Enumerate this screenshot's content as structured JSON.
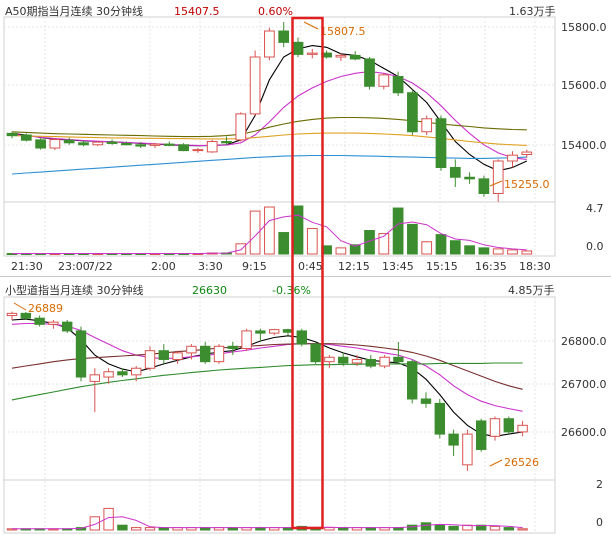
{
  "colors": {
    "up": "#d9534f",
    "down": "#3c8d2f",
    "ma_black": "#000000",
    "ma_magenta": "#cc33cc",
    "ma_olive": "#6b6b00",
    "ma_orange": "#e0a020",
    "ma_blue": "#2f8fd6",
    "ma_green": "#2e8b2e",
    "ma_brown": "#7a2f2f",
    "highlight": "#e02020",
    "grid": "#e6e6e6",
    "text_red": "#c00000",
    "text_green": "#118811",
    "annotation": "#d86a00"
  },
  "x_axis_ticks": [
    "21:30",
    "23:00",
    "7/22",
    "2:00",
    "3:30",
    "9:15",
    "0:45",
    "12:15",
    "13:45",
    "15:15",
    "16:35",
    "18:30"
  ],
  "chart_data": [
    {
      "type": "candlestick",
      "title": "A50期指当月连续 30分钟线",
      "price": "15407.5",
      "change": "0.60%",
      "volume_max_label": "1.63万手",
      "ylim": [
        15260,
        15820
      ],
      "y_ticks": [
        "15800.0",
        "15600.0",
        "15400.0"
      ],
      "volume_ticks": [
        "4.7",
        "0.0"
      ],
      "annotations": {
        "high": "15807.5",
        "low": "15255.0"
      },
      "candles": [
        {
          "o": 15465,
          "h": 15470,
          "l": 15450,
          "c": 15458
        },
        {
          "o": 15460,
          "h": 15465,
          "l": 15440,
          "c": 15444
        },
        {
          "o": 15445,
          "h": 15450,
          "l": 15415,
          "c": 15420
        },
        {
          "o": 15420,
          "h": 15450,
          "l": 15414,
          "c": 15446
        },
        {
          "o": 15444,
          "h": 15452,
          "l": 15430,
          "c": 15436
        },
        {
          "o": 15436,
          "h": 15442,
          "l": 15425,
          "c": 15430
        },
        {
          "o": 15430,
          "h": 15440,
          "l": 15426,
          "c": 15438
        },
        {
          "o": 15438,
          "h": 15446,
          "l": 15430,
          "c": 15434
        },
        {
          "o": 15434,
          "h": 15440,
          "l": 15428,
          "c": 15430
        },
        {
          "o": 15430,
          "h": 15438,
          "l": 15420,
          "c": 15426
        },
        {
          "o": 15428,
          "h": 15436,
          "l": 15420,
          "c": 15432
        },
        {
          "o": 15432,
          "h": 15440,
          "l": 15425,
          "c": 15428
        },
        {
          "o": 15430,
          "h": 15435,
          "l": 15410,
          "c": 15412
        },
        {
          "o": 15412,
          "h": 15420,
          "l": 15405,
          "c": 15415
        },
        {
          "o": 15408,
          "h": 15445,
          "l": 15405,
          "c": 15440
        },
        {
          "o": 15440,
          "h": 15455,
          "l": 15430,
          "c": 15436
        },
        {
          "o": 15445,
          "h": 15530,
          "l": 15440,
          "c": 15525
        },
        {
          "o": 15525,
          "h": 15720,
          "l": 15520,
          "c": 15700
        },
        {
          "o": 15700,
          "h": 15790,
          "l": 15690,
          "c": 15780
        },
        {
          "o": 15780,
          "h": 15807.5,
          "l": 15730,
          "c": 15745
        },
        {
          "o": 15745,
          "h": 15760,
          "l": 15700,
          "c": 15708
        },
        {
          "o": 15708,
          "h": 15725,
          "l": 15696,
          "c": 15712
        },
        {
          "o": 15712,
          "h": 15720,
          "l": 15695,
          "c": 15700
        },
        {
          "o": 15700,
          "h": 15712,
          "l": 15688,
          "c": 15705
        },
        {
          "o": 15705,
          "h": 15718,
          "l": 15690,
          "c": 15694
        },
        {
          "o": 15694,
          "h": 15700,
          "l": 15600,
          "c": 15610
        },
        {
          "o": 15610,
          "h": 15650,
          "l": 15600,
          "c": 15645
        },
        {
          "o": 15640,
          "h": 15655,
          "l": 15580,
          "c": 15590
        },
        {
          "o": 15590,
          "h": 15600,
          "l": 15460,
          "c": 15470
        },
        {
          "o": 15470,
          "h": 15520,
          "l": 15460,
          "c": 15510
        },
        {
          "o": 15510,
          "h": 15520,
          "l": 15350,
          "c": 15360
        },
        {
          "o": 15360,
          "h": 15385,
          "l": 15300,
          "c": 15330
        },
        {
          "o": 15330,
          "h": 15345,
          "l": 15310,
          "c": 15325
        },
        {
          "o": 15325,
          "h": 15335,
          "l": 15270,
          "c": 15280
        },
        {
          "o": 15280,
          "h": 15385,
          "l": 15255,
          "c": 15380
        },
        {
          "o": 15380,
          "h": 15410,
          "l": 15360,
          "c": 15398
        },
        {
          "o": 15400,
          "h": 15415,
          "l": 15390,
          "c": 15407.5
        }
      ],
      "volume": [
        0.05,
        0.05,
        0.05,
        0.05,
        0.05,
        0.05,
        0.05,
        0.05,
        0.05,
        0.05,
        0.05,
        0.05,
        0.05,
        0.05,
        0.1,
        0.1,
        1.0,
        4.2,
        4.6,
        2.1,
        4.7,
        2.5,
        0.8,
        0.6,
        0.9,
        2.3,
        2.0,
        4.5,
        2.9,
        1.2,
        1.9,
        1.3,
        0.8,
        0.6,
        0.5,
        0.4,
        0.3
      ],
      "ma_lines": [
        {
          "color_key": "ma_black",
          "values": [
            15465,
            15460,
            15452,
            15447,
            15445,
            15442,
            15440,
            15439,
            15437,
            15434,
            15432,
            15430,
            15428,
            15427,
            15428,
            15430,
            15445,
            15520,
            15630,
            15700,
            15725,
            15735,
            15730,
            15710,
            15705,
            15690,
            15665,
            15640,
            15600,
            15560,
            15500,
            15440,
            15400,
            15370,
            15350,
            15360,
            15380
          ]
        },
        {
          "color_key": "ma_magenta",
          "values": [
            15462,
            15458,
            15453,
            15449,
            15446,
            15443,
            15441,
            15439,
            15437,
            15435,
            15433,
            15431,
            15429,
            15428,
            15428,
            15429,
            15436,
            15460,
            15500,
            15545,
            15580,
            15605,
            15625,
            15640,
            15650,
            15655,
            15650,
            15640,
            15620,
            15590,
            15550,
            15505,
            15465,
            15430,
            15405,
            15390,
            15385
          ]
        },
        {
          "color_key": "ma_olive",
          "values": [
            15470,
            15468,
            15466,
            15464,
            15463,
            15462,
            15461,
            15460,
            15459,
            15458,
            15457,
            15456,
            15455,
            15455,
            15456,
            15458,
            15462,
            15472,
            15484,
            15494,
            15502,
            15508,
            15512,
            15514,
            15514,
            15513,
            15511,
            15508,
            15504,
            15499,
            15494,
            15490,
            15486,
            15482,
            15479,
            15477,
            15476
          ]
        },
        {
          "color_key": "ma_orange",
          "values": [
            15458,
            15457,
            15456,
            15455,
            15454,
            15453,
            15452,
            15451,
            15451,
            15450,
            15450,
            15449,
            15449,
            15448,
            15448,
            15448,
            15449,
            15452,
            15456,
            15460,
            15463,
            15465,
            15466,
            15466,
            15466,
            15465,
            15463,
            15461,
            15458,
            15454,
            15450,
            15445,
            15440,
            15436,
            15432,
            15430,
            15428
          ]
        },
        {
          "color_key": "ma_blue",
          "values": [
            15340,
            15343,
            15346,
            15349,
            15352,
            15355,
            15358,
            15361,
            15364,
            15367,
            15370,
            15373,
            15376,
            15379,
            15382,
            15385,
            15388,
            15391,
            15393,
            15395,
            15396,
            15397,
            15397,
            15397,
            15396,
            15395,
            15394,
            15393,
            15392,
            15391,
            15390,
            15389,
            15388,
            15388,
            15389,
            15390,
            15392
          ]
        }
      ]
    },
    {
      "type": "candlestick",
      "title": "小型道指当月连续 30分钟线",
      "price": "26630",
      "change": "-0.36%",
      "volume_max_label": "4.85万手",
      "ylim": [
        26510,
        26920
      ],
      "y_ticks": [
        "26800.0",
        "26700.0",
        "26600.0"
      ],
      "volume_ticks": [
        "2",
        "0"
      ],
      "annotations": {
        "high": "26889",
        "low": "26526"
      },
      "candles": [
        {
          "o": 26880,
          "h": 26889,
          "l": 26870,
          "c": 26885
        },
        {
          "o": 26885,
          "h": 26888,
          "l": 26870,
          "c": 26874
        },
        {
          "o": 26874,
          "h": 26880,
          "l": 26855,
          "c": 26860
        },
        {
          "o": 26860,
          "h": 26870,
          "l": 26850,
          "c": 26865
        },
        {
          "o": 26865,
          "h": 26870,
          "l": 26840,
          "c": 26845
        },
        {
          "o": 26845,
          "h": 26855,
          "l": 26730,
          "c": 26740
        },
        {
          "o": 26730,
          "h": 26760,
          "l": 26660,
          "c": 26745
        },
        {
          "o": 26740,
          "h": 26760,
          "l": 26725,
          "c": 26752
        },
        {
          "o": 26752,
          "h": 26760,
          "l": 26740,
          "c": 26745
        },
        {
          "o": 26745,
          "h": 26765,
          "l": 26730,
          "c": 26760
        },
        {
          "o": 26760,
          "h": 26810,
          "l": 26755,
          "c": 26800
        },
        {
          "o": 26800,
          "h": 26815,
          "l": 26770,
          "c": 26780
        },
        {
          "o": 26780,
          "h": 26800,
          "l": 26770,
          "c": 26795
        },
        {
          "o": 26795,
          "h": 26815,
          "l": 26780,
          "c": 26810
        },
        {
          "o": 26810,
          "h": 26820,
          "l": 26770,
          "c": 26775
        },
        {
          "o": 26775,
          "h": 26815,
          "l": 26770,
          "c": 26810
        },
        {
          "o": 26810,
          "h": 26820,
          "l": 26790,
          "c": 26805
        },
        {
          "o": 26805,
          "h": 26850,
          "l": 26800,
          "c": 26845
        },
        {
          "o": 26845,
          "h": 26850,
          "l": 26820,
          "c": 26840
        },
        {
          "o": 26840,
          "h": 26850,
          "l": 26835,
          "c": 26848
        },
        {
          "o": 26848,
          "h": 26850,
          "l": 26835,
          "c": 26842
        },
        {
          "o": 26845,
          "h": 26850,
          "l": 26810,
          "c": 26815
        },
        {
          "o": 26815,
          "h": 26820,
          "l": 26770,
          "c": 26775
        },
        {
          "o": 26775,
          "h": 26790,
          "l": 26760,
          "c": 26785
        },
        {
          "o": 26785,
          "h": 26795,
          "l": 26765,
          "c": 26772
        },
        {
          "o": 26772,
          "h": 26790,
          "l": 26765,
          "c": 26780
        },
        {
          "o": 26780,
          "h": 26790,
          "l": 26760,
          "c": 26765
        },
        {
          "o": 26765,
          "h": 26790,
          "l": 26760,
          "c": 26785
        },
        {
          "o": 26785,
          "h": 26820,
          "l": 26770,
          "c": 26775
        },
        {
          "o": 26775,
          "h": 26780,
          "l": 26680,
          "c": 26690
        },
        {
          "o": 26690,
          "h": 26705,
          "l": 26670,
          "c": 26680
        },
        {
          "o": 26680,
          "h": 26690,
          "l": 26600,
          "c": 26610
        },
        {
          "o": 26610,
          "h": 26620,
          "l": 26560,
          "c": 26585
        },
        {
          "o": 26540,
          "h": 26620,
          "l": 26526,
          "c": 26610
        },
        {
          "o": 26640,
          "h": 26645,
          "l": 26570,
          "c": 26575
        },
        {
          "o": 26605,
          "h": 26650,
          "l": 26595,
          "c": 26645
        },
        {
          "o": 26645,
          "h": 26650,
          "l": 26610,
          "c": 26615
        },
        {
          "o": 26615,
          "h": 26640,
          "l": 26605,
          "c": 26630
        }
      ],
      "volume": [
        0.05,
        0.05,
        0.05,
        0.05,
        0.05,
        0.1,
        0.55,
        0.9,
        0.2,
        0.1,
        0.1,
        0.1,
        0.1,
        0.1,
        0.1,
        0.1,
        0.1,
        0.1,
        0.1,
        0.1,
        0.1,
        0.15,
        0.1,
        0.1,
        0.1,
        0.1,
        0.1,
        0.1,
        0.1,
        0.2,
        0.3,
        0.2,
        0.15,
        0.2,
        0.2,
        0.15,
        0.1,
        0.05
      ],
      "volume_scale_max": 2,
      "ma_lines": [
        {
          "color_key": "ma_black",
          "values": [
            26870,
            26872,
            26868,
            26862,
            26852,
            26825,
            26790,
            26770,
            26758,
            26752,
            26760,
            26770,
            26778,
            26786,
            26792,
            26797,
            26800,
            26810,
            26822,
            26830,
            26834,
            26830,
            26820,
            26806,
            26795,
            26786,
            26778,
            26775,
            26772,
            26760,
            26735,
            26700,
            26660,
            26630,
            26610,
            26605,
            26610,
            26615
          ]
        },
        {
          "color_key": "ma_magenta",
          "values": [
            26860,
            26862,
            26862,
            26860,
            26856,
            26846,
            26830,
            26815,
            26800,
            26790,
            26784,
            26782,
            26783,
            26786,
            26789,
            26793,
            26797,
            26801,
            26806,
            26810,
            26814,
            26816,
            26816,
            26814,
            26810,
            26806,
            26800,
            26795,
            26790,
            26780,
            26765,
            26745,
            26720,
            26700,
            26685,
            26675,
            26668,
            26662
          ]
        },
        {
          "color_key": "ma_brown",
          "values": [
            26760,
            26765,
            26770,
            26775,
            26779,
            26782,
            26784,
            26786,
            26788,
            26790,
            26792,
            26795,
            26798,
            26800,
            26803,
            26806,
            26808,
            26810,
            26812,
            26814,
            26815,
            26816,
            26816,
            26816,
            26815,
            26813,
            26810,
            26806,
            26802,
            26796,
            26788,
            26778,
            26766,
            26754,
            26742,
            26730,
            26720,
            26712
          ]
        },
        {
          "color_key": "ma_green",
          "values": [
            26688,
            26694,
            26700,
            26706,
            26712,
            26718,
            26723,
            26728,
            26732,
            26736,
            26740,
            26744,
            26747,
            26750,
            26753,
            26756,
            26758,
            26760,
            26762,
            26764,
            26766,
            26767,
            26768,
            26768,
            26769,
            26769,
            26770,
            26770,
            26770,
            26770,
            26770,
            26771,
            26771,
            26771,
            26771,
            26772,
            26772,
            26772
          ]
        }
      ]
    }
  ]
}
